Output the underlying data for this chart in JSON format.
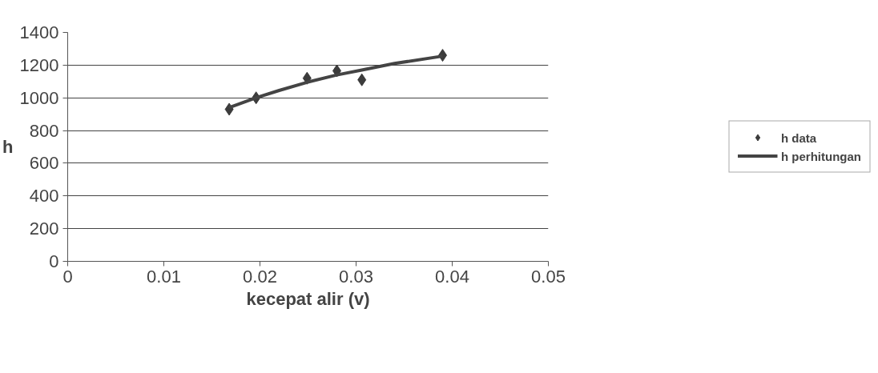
{
  "chart_data": {
    "type": "scatter",
    "xlabel": "kecepat alir (v)",
    "ylabel": "h",
    "xlim": [
      0,
      0.05
    ],
    "xticks": [
      0,
      0.01,
      0.02,
      0.03,
      0.04,
      0.05
    ],
    "ylim": [
      0,
      1400
    ],
    "yticks": [
      0,
      200,
      400,
      600,
      800,
      1000,
      1200,
      1400
    ],
    "grid": "y",
    "legend": "right",
    "marker": "diamond",
    "series": [
      {
        "name": "h data",
        "color": "#3c3c3c",
        "x": [
          0.0168,
          0.0196,
          0.0249,
          0.028,
          0.0306,
          0.039
        ],
        "values": [
          930,
          1000,
          1120,
          1165,
          1110,
          1260
        ]
      },
      {
        "name": "h perhitungan",
        "type": "line",
        "marker": "none",
        "color": "#444444",
        "x": [
          0.0168,
          0.0196,
          0.022,
          0.0249,
          0.028,
          0.0306,
          0.034,
          0.039
        ],
        "values": [
          940,
          1000,
          1045,
          1095,
          1140,
          1170,
          1210,
          1255
        ]
      }
    ]
  }
}
